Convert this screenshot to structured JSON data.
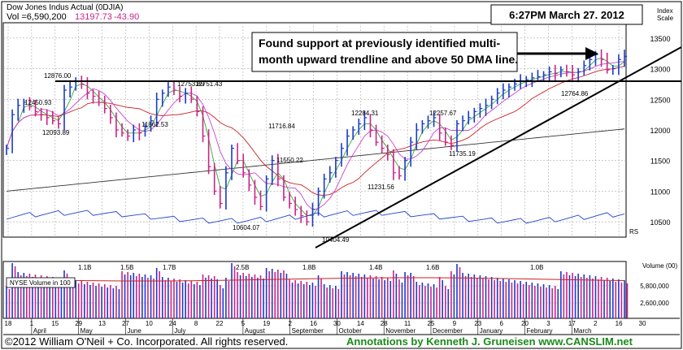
{
  "chart_data": {
    "type": "candlestick",
    "title": "Dow Jones Indus Actual (0DJIA)",
    "volume_label": "Vol =6,590,200",
    "last_price": "13197.73",
    "change": "-43.90",
    "timestamp": "6:27PM March 27. 2012",
    "annotation": "Found support at previously identified multi-month upward trendline and above 50 DMA line.",
    "copyright": "©2012 William O'Neil + Co. Incorporated. All rights reserved.",
    "credit": "Annotations by Kenneth J. Gruneisen www.CANSLIM.net",
    "index_scale_label": "Index Scale",
    "y_ticks": [
      13500,
      13000,
      12500,
      12000,
      11500,
      11000,
      10500
    ],
    "y_range": [
      10250,
      13750
    ],
    "volume_axis_label": "Volume (00)",
    "volume_ticks": [
      "5,800,000",
      "2,600,000"
    ],
    "volume_legend": "NYSE Volume in 100",
    "rs_label": "RS",
    "x_tick_labels": [
      "18",
      "1",
      "15",
      "29",
      "13",
      "27",
      "10",
      "24",
      "8",
      "22",
      "5",
      "19",
      "2",
      "16",
      "30",
      "14",
      "28",
      "11",
      "25",
      "9",
      "23",
      "6",
      "20",
      "3",
      "17",
      "2",
      "16",
      "30"
    ],
    "month_labels": [
      "April",
      "May",
      "June",
      "July",
      "August",
      "September",
      "October",
      "November",
      "December",
      "January",
      "February",
      "March"
    ],
    "price_labels": [
      "12876.00",
      "12450.93",
      "12093.89",
      "11862.53",
      "12753.89",
      "12751.43",
      "11716.84",
      "11550.22",
      "10604.07",
      "10404.49",
      "12284.31",
      "11231.56",
      "12257.67",
      "11735.19",
      "12764.86"
    ],
    "volume_peak_labels": [
      "1.1B",
      "1.5B",
      "1.7B",
      "2.5B",
      "1.8B",
      "1.4B",
      "1.6B",
      "1.0B"
    ],
    "close_series": [
      11700,
      12250,
      12400,
      12450,
      12380,
      12300,
      12250,
      12200,
      12150,
      12100,
      12650,
      12700,
      12800,
      12750,
      12600,
      12550,
      12450,
      12350,
      12200,
      12000,
      11950,
      11900,
      12000,
      11950,
      12050,
      12150,
      12500,
      12600,
      12700,
      12650,
      12550,
      12600,
      12500,
      12300,
      11900,
      11400,
      11000,
      10800,
      11300,
      11700,
      11500,
      11300,
      11100,
      10900,
      10750,
      11200,
      11500,
      11200,
      10900,
      10800,
      10700,
      10600,
      10500,
      10700,
      11000,
      11200,
      11300,
      11500,
      11700,
      11900,
      12000,
      12100,
      12200,
      12000,
      11800,
      11700,
      11600,
      11300,
      11250,
      11500,
      11800,
      12000,
      12100,
      12150,
      12200,
      11950,
      11800,
      11750,
      12100,
      12150,
      12200,
      12300,
      12350,
      12400,
      12500,
      12600,
      12650,
      12700,
      12750,
      12800,
      12820,
      12850,
      12870,
      12900,
      12950,
      12920,
      12980,
      12950,
      12900,
      12950,
      13050,
      13150,
      13230,
      13150,
      12980,
      13000,
      13150,
      13200
    ]
  }
}
